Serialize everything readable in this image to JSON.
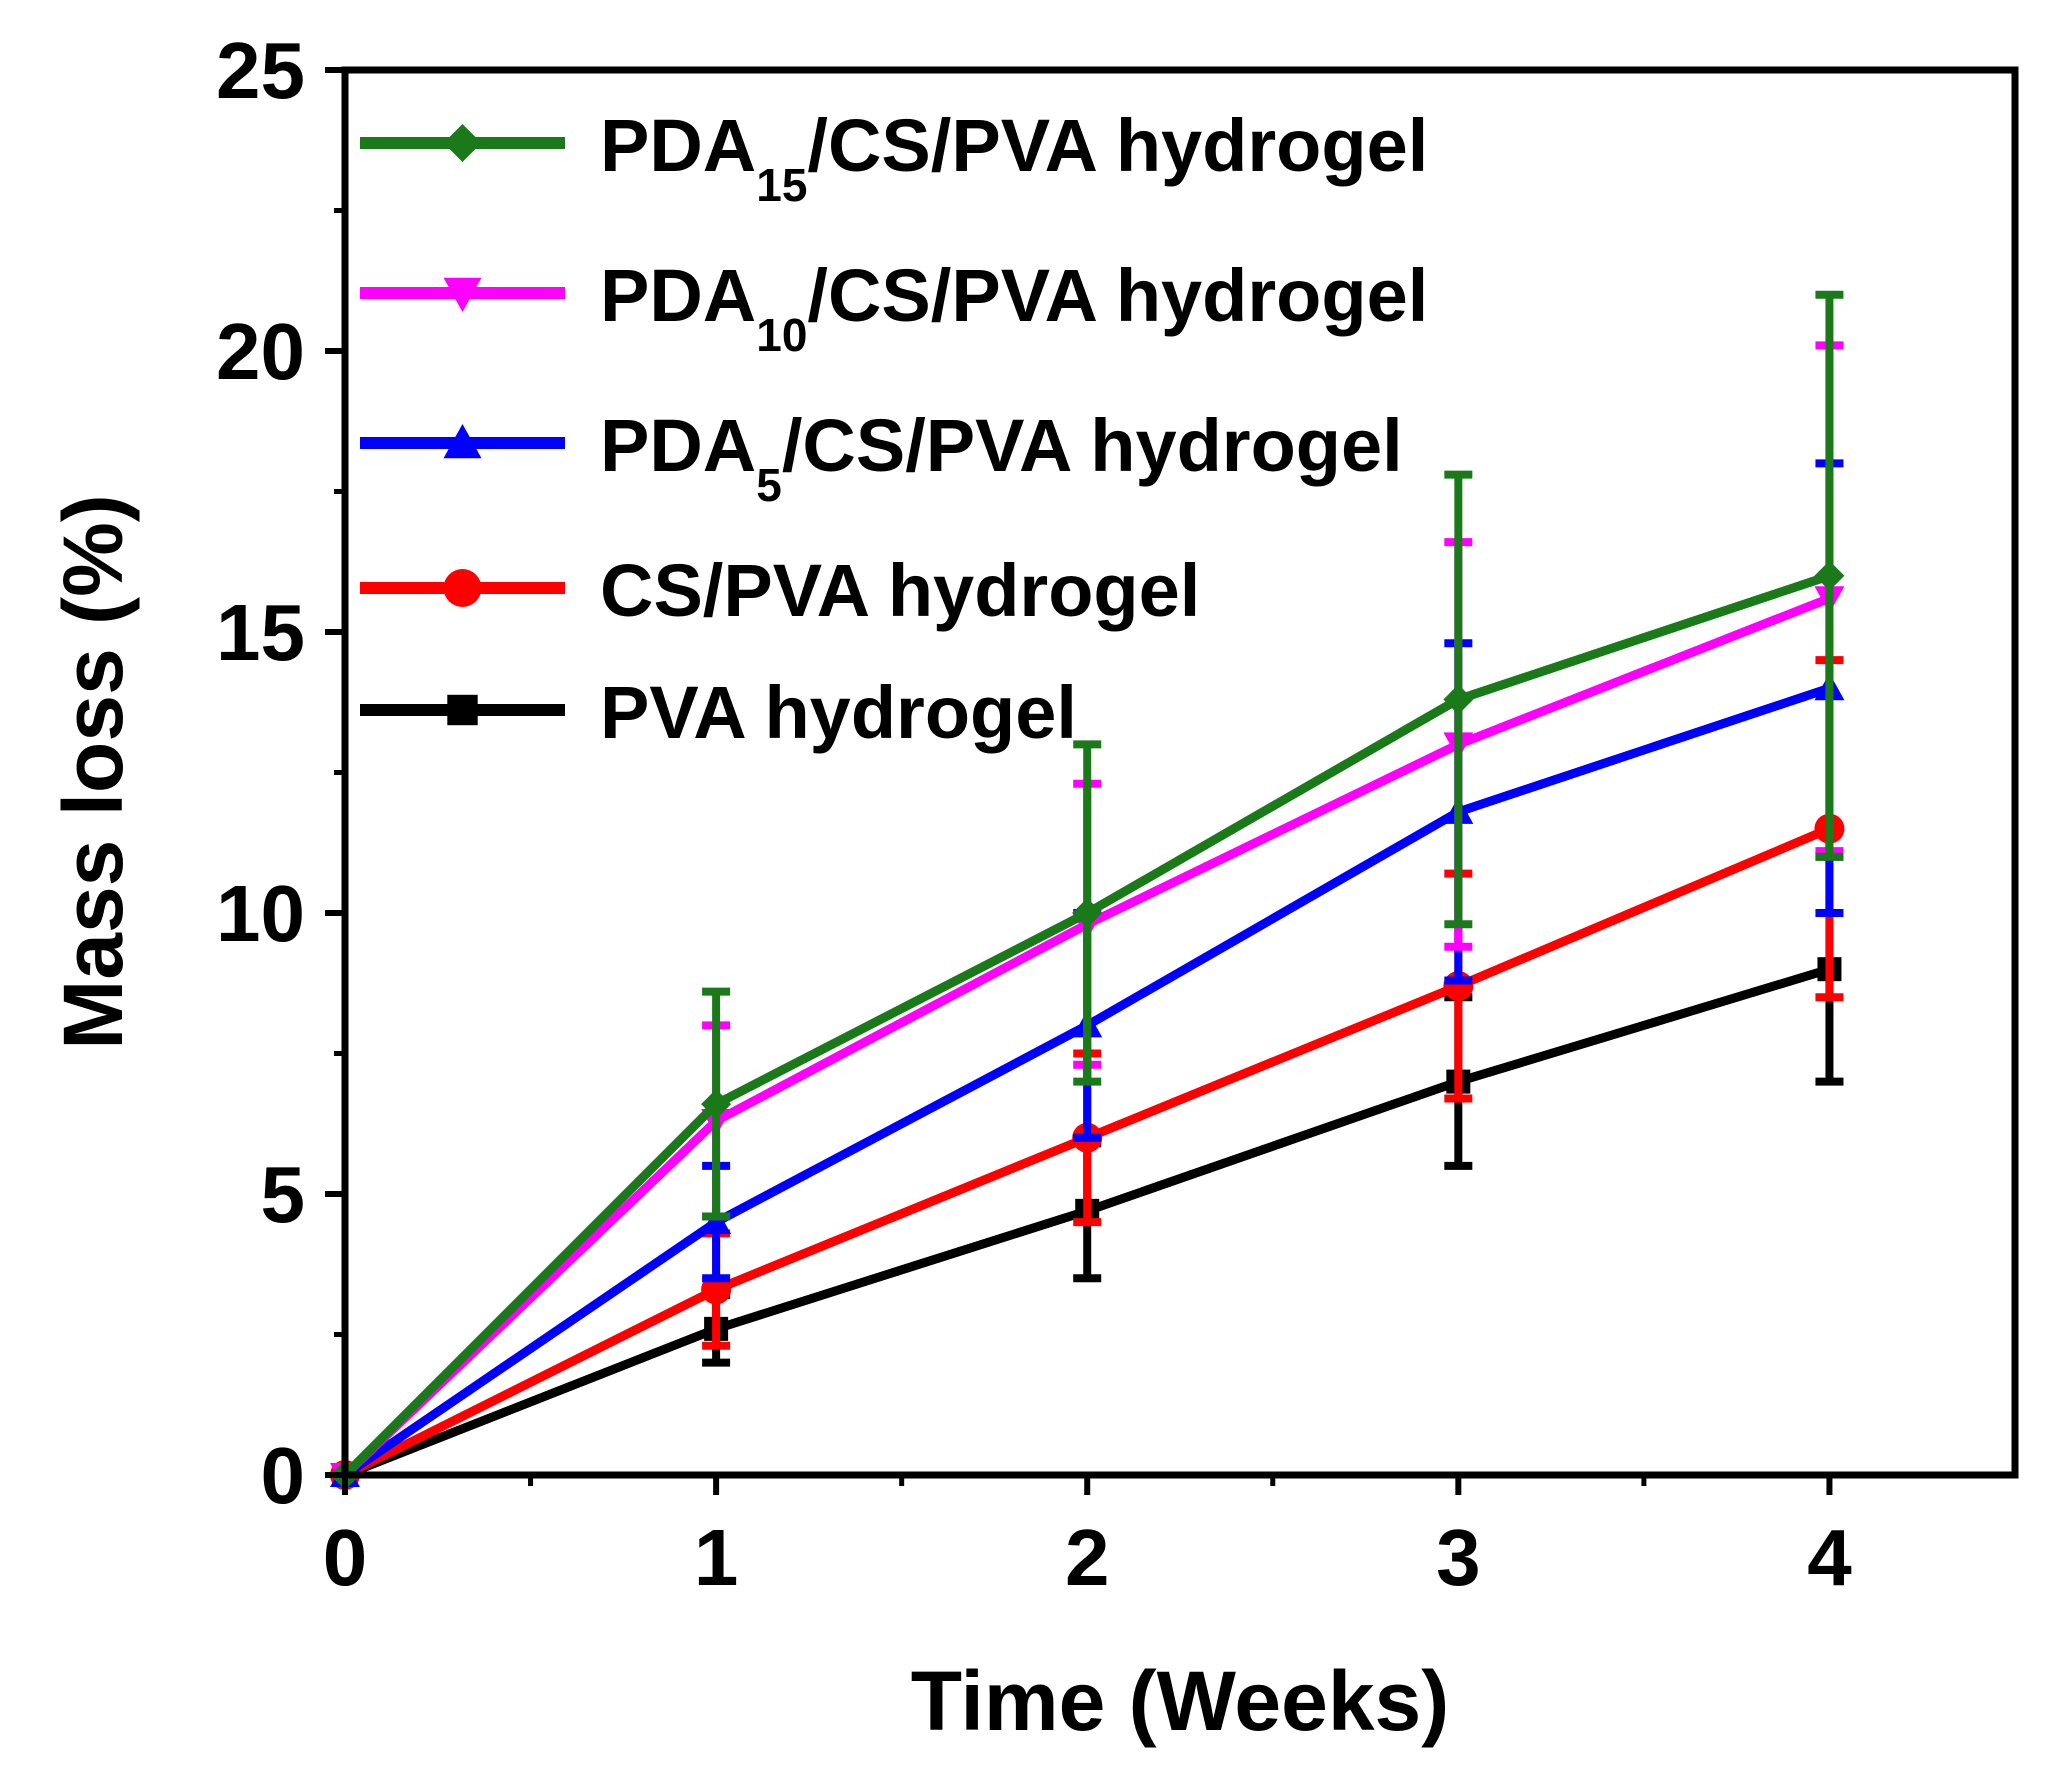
{
  "chart_data": {
    "type": "line",
    "xlabel": "Time (Weeks)",
    "ylabel": "Mass loss (%)",
    "xlim": [
      0,
      4.5
    ],
    "ylim": [
      0,
      25
    ],
    "xticks": [
      0,
      1,
      2,
      3,
      4
    ],
    "yticks": [
      0,
      5,
      10,
      15,
      20,
      25
    ],
    "x": [
      0,
      1,
      2,
      3,
      4
    ],
    "legend_position": "top-left",
    "grid": false,
    "series": [
      {
        "name": "PDA15/CS/PVA hydrogel",
        "legend_main": "PDA",
        "legend_sub": "15",
        "legend_rest": "/CS/PVA hydrogel",
        "color": "#1a7a1a",
        "marker": "diamond",
        "values": [
          0,
          6.6,
          10.0,
          13.8,
          16.0
        ],
        "errors": [
          0,
          2.0,
          3.0,
          4.0,
          5.0
        ]
      },
      {
        "name": "PDA10/CS/PVA hydrogel",
        "legend_main": "PDA",
        "legend_sub": "10",
        "legend_rest": "/CS/PVA hydrogel",
        "color": "#ff00ff",
        "marker": "triangle-down",
        "values": [
          0,
          6.3,
          9.8,
          13.0,
          15.6
        ],
        "errors": [
          0,
          1.7,
          2.5,
          3.6,
          4.5
        ]
      },
      {
        "name": "PDA5/CS/PVA hydrogel",
        "legend_main": "PDA",
        "legend_sub": "5",
        "legend_rest": "/CS/PVA hydrogel",
        "color": "#0000ff",
        "marker": "triangle-up",
        "values": [
          0,
          4.5,
          8.0,
          11.8,
          14.0
        ],
        "errors": [
          0,
          1.0,
          2.0,
          3.0,
          4.0
        ]
      },
      {
        "name": "CS/PVA hydrogel",
        "legend_main": "CS/PVA hydrogel",
        "legend_sub": "",
        "legend_rest": "",
        "color": "#ff0000",
        "marker": "circle",
        "values": [
          0,
          3.3,
          6.0,
          8.7,
          11.5
        ],
        "errors": [
          0,
          1.0,
          1.5,
          2.0,
          3.0
        ]
      },
      {
        "name": "PVA hydrogel",
        "legend_main": "PVA hydrogel",
        "legend_sub": "",
        "legend_rest": "",
        "color": "#000000",
        "marker": "square",
        "values": [
          0,
          2.6,
          4.7,
          7.0,
          9.0
        ],
        "errors": [
          0,
          0.6,
          1.2,
          1.5,
          2.0
        ]
      }
    ]
  }
}
